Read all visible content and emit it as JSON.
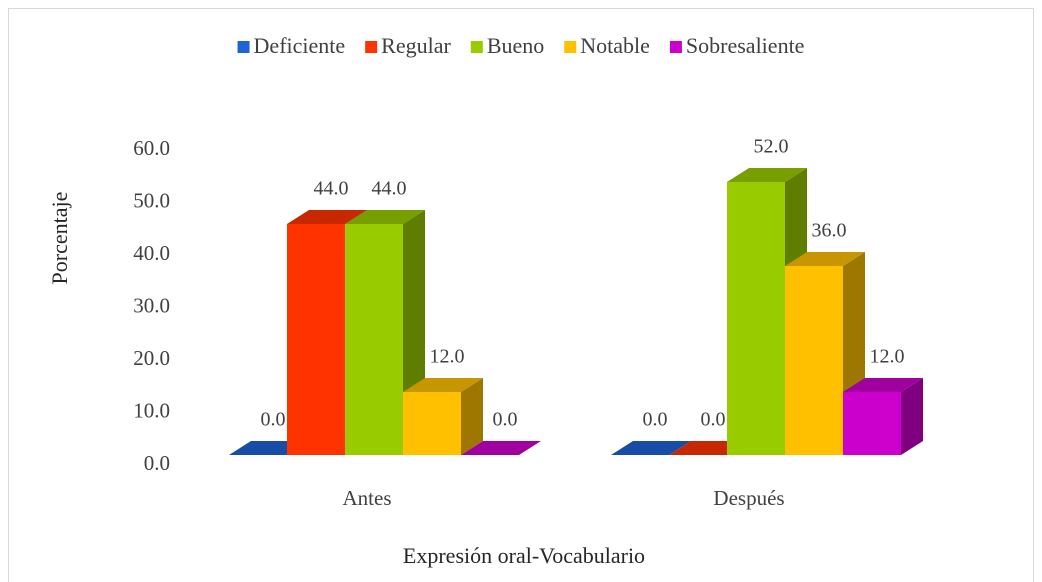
{
  "chart_data": {
    "type": "bar3d",
    "categories": [
      "Antes",
      "Después"
    ],
    "series": [
      {
        "name": "Deficiente",
        "color": "#1F63D6",
        "values": [
          0,
          0
        ],
        "value_labels": [
          "0.0",
          "0.0"
        ]
      },
      {
        "name": "Regular",
        "color": "#FF3300",
        "values": [
          44,
          0
        ],
        "value_labels": [
          "44.0",
          "0.0"
        ]
      },
      {
        "name": "Bueno",
        "color": "#99CC00",
        "values": [
          44,
          52
        ],
        "value_labels": [
          "44.0",
          "52.0"
        ]
      },
      {
        "name": "Notable",
        "color": "#FFC000",
        "values": [
          12,
          36
        ],
        "value_labels": [
          "12.0",
          "36.0"
        ]
      },
      {
        "name": "Sobresaliente",
        "color": "#CC00CC",
        "values": [
          0,
          12
        ],
        "value_labels": [
          "0.0",
          "12.0"
        ]
      }
    ],
    "ylabel": "Porcentaje",
    "xlabel": "Expresión oral-Vocabulario",
    "ylim": [
      0,
      60
    ],
    "yticks": [
      {
        "value": 0,
        "label": "0.0"
      },
      {
        "value": 10,
        "label": "10.0"
      },
      {
        "value": 20,
        "label": "20.0"
      },
      {
        "value": 30,
        "label": "30.0"
      },
      {
        "value": 40,
        "label": "40.0"
      },
      {
        "value": 50,
        "label": "50.0"
      },
      {
        "value": 60,
        "label": "60.0"
      }
    ],
    "legend": "top"
  }
}
